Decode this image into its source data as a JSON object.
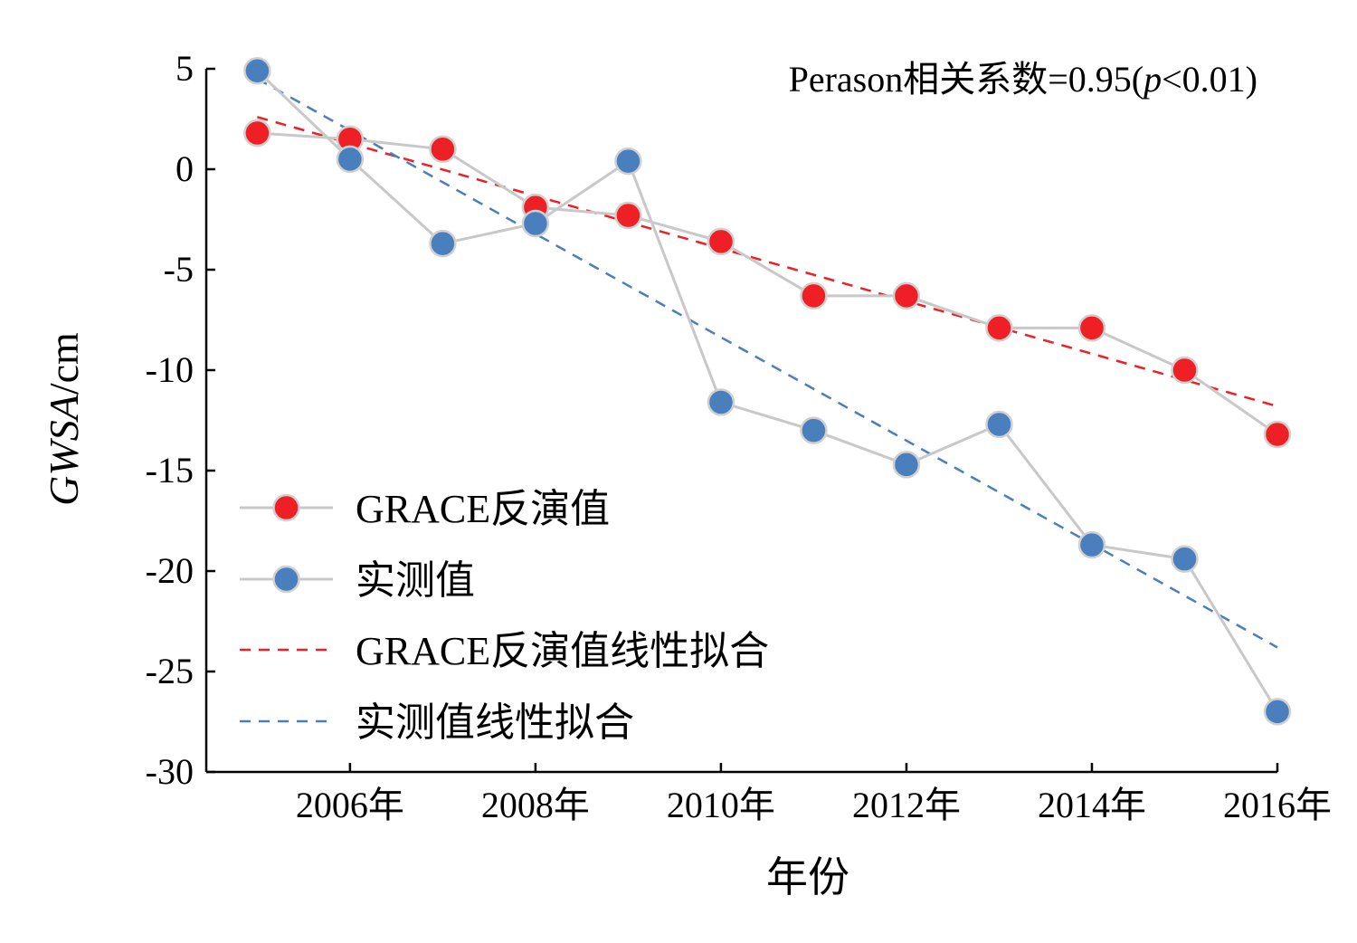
{
  "chart_data": {
    "type": "line",
    "annotation": {
      "prefix": "Perason相关系数=0.95(",
      "p_symbol": "p",
      "suffix": "<0.01)"
    },
    "xlabel": "年份",
    "ylabel": {
      "italic": "GWSA",
      "unit": "/cm"
    },
    "x": [
      2005,
      2006,
      2007,
      2008,
      2009,
      2010,
      2011,
      2012,
      2013,
      2014,
      2015,
      2016
    ],
    "xlim": [
      2004.45,
      2016
    ],
    "ylim": [
      -30,
      5
    ],
    "x_ticks": [
      {
        "value": 2006,
        "label": "2006年"
      },
      {
        "value": 2008,
        "label": "2008年"
      },
      {
        "value": 2010,
        "label": "2010年"
      },
      {
        "value": 2012,
        "label": "2012年"
      },
      {
        "value": 2014,
        "label": "2014年"
      },
      {
        "value": 2016,
        "label": "2016年"
      }
    ],
    "y_ticks": [
      {
        "value": 5,
        "label": "5"
      },
      {
        "value": 0,
        "label": "0"
      },
      {
        "value": -5,
        "label": "-5"
      },
      {
        "value": -10,
        "label": "-10"
      },
      {
        "value": -15,
        "label": "-15"
      },
      {
        "value": -20,
        "label": "-20"
      },
      {
        "value": -25,
        "label": "-25"
      },
      {
        "value": -30,
        "label": "-30"
      }
    ],
    "series": [
      {
        "name": "GRACE反演值",
        "color": "#ee1f25",
        "values": [
          1.8,
          1.5,
          1.0,
          -1.9,
          -2.3,
          -3.6,
          -6.3,
          -6.3,
          -7.9,
          -7.9,
          -10.0,
          -13.2
        ]
      },
      {
        "name": "实测值",
        "color": "#4a7fbd",
        "values": [
          4.9,
          0.5,
          -3.7,
          -2.7,
          0.4,
          -11.6,
          -13.0,
          -14.7,
          -12.7,
          -18.7,
          -19.4,
          -27.0
        ]
      }
    ],
    "fits": [
      {
        "name": "GRACE反演值线性拟合",
        "color": "#ee1f25",
        "from": [
          2005,
          2.6
        ],
        "to": [
          2016,
          -11.8
        ]
      },
      {
        "name": "实测值线性拟合",
        "color": "#4a7fbd",
        "from": [
          2005,
          4.5
        ],
        "to": [
          2016,
          -23.8
        ]
      }
    ],
    "connector_color": "#c8c8c8",
    "grid": false,
    "legend_position": "bottom-left"
  }
}
